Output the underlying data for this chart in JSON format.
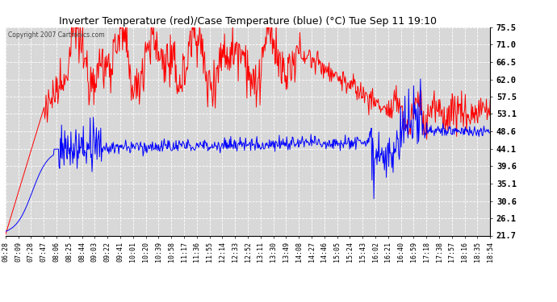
{
  "title": "Inverter Temperature (red)/Case Temperature (blue) (°C) Tue Sep 11 19:10",
  "copyright": "Copyright 2007 Cartronics.com",
  "yticks": [
    75.5,
    71.0,
    66.5,
    62.0,
    57.5,
    53.1,
    48.6,
    44.1,
    39.6,
    35.1,
    30.6,
    26.1,
    21.7
  ],
  "ylim": [
    21.7,
    75.5
  ],
  "bg_color": "#ffffff",
  "plot_bg": "#d8d8d8",
  "grid_color": "#ffffff",
  "red_color": "#ff0000",
  "blue_color": "#0000ff",
  "x_labels": [
    "06:28",
    "07:09",
    "07:28",
    "07:47",
    "08:06",
    "08:25",
    "08:44",
    "09:03",
    "09:22",
    "09:41",
    "10:01",
    "10:20",
    "10:39",
    "10:58",
    "11:17",
    "11:36",
    "11:55",
    "12:14",
    "12:33",
    "12:52",
    "13:11",
    "13:30",
    "13:49",
    "14:08",
    "14:27",
    "14:46",
    "15:05",
    "15:24",
    "15:43",
    "16:02",
    "16:21",
    "16:40",
    "16:59",
    "17:18",
    "17:38",
    "17:57",
    "18:16",
    "18:35",
    "18:54"
  ],
  "figsize": [
    6.9,
    3.75
  ],
  "dpi": 100
}
